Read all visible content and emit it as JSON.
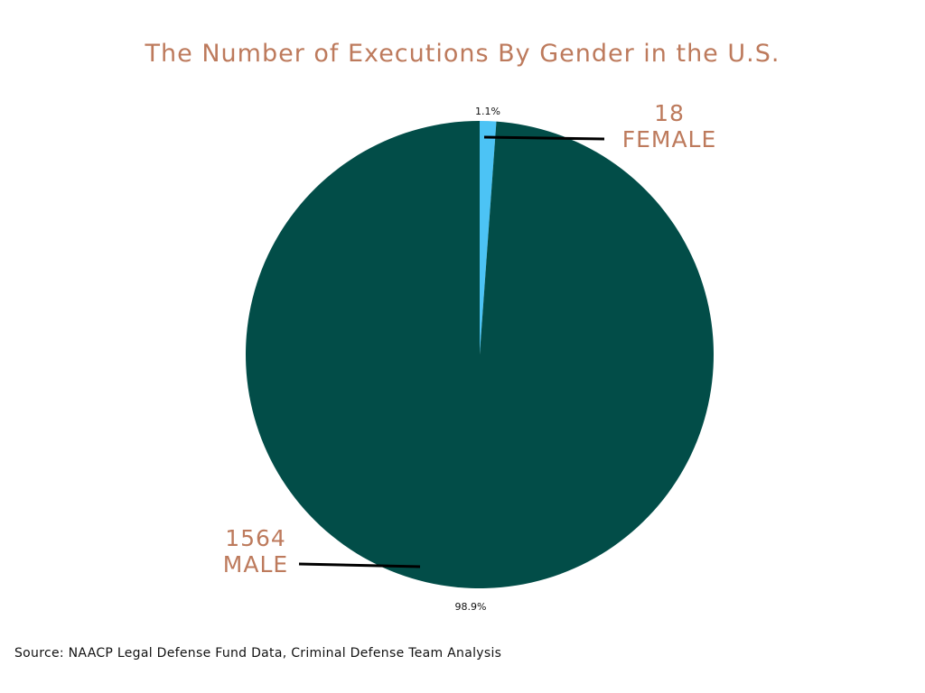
{
  "title": "The Number of Executions By Gender in the U.S.",
  "source": "Source: NAACP Legal Defense Fund Data, Criminal Defense Team Analysis",
  "colors": {
    "title": "#bd7a5c",
    "callout_text": "#bd7a5c",
    "leader_line": "#000000",
    "pct_text": "#111111"
  },
  "chart_data": {
    "type": "pie",
    "title": "The Number of Executions By Gender in the U.S.",
    "slices": [
      {
        "label": "FEMALE",
        "value": 18,
        "percent": "1.1%",
        "count_label": "18",
        "color": "#4cc3f5"
      },
      {
        "label": "MALE",
        "value": 1564,
        "percent": "98.9%",
        "count_label": "1564",
        "color": "#024d48"
      }
    ],
    "start_angle": "12 o'clock",
    "direction": "clockwise",
    "legend": "none"
  }
}
